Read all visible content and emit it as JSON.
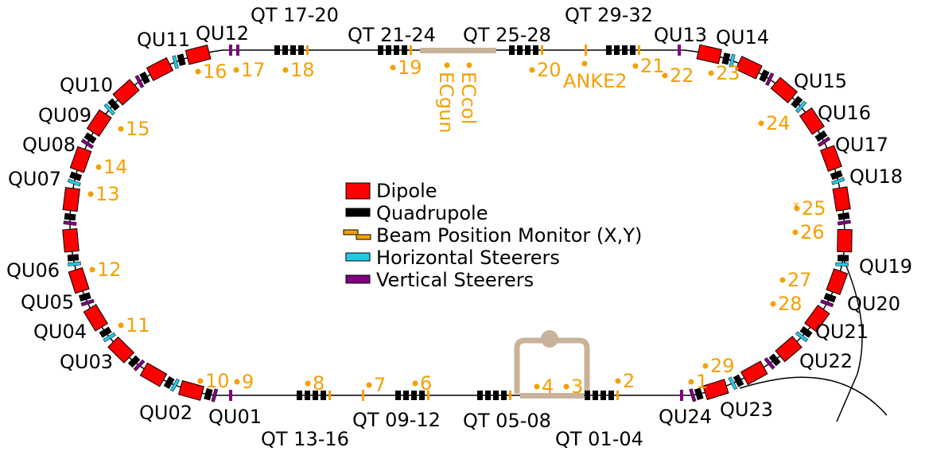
{
  "magnets": [
    "QT 17-20",
    "QU11",
    "QU12",
    "QT 21-24",
    "QT 25-28",
    "QT 29-32",
    "QU13",
    "QU14",
    "QU10",
    "QU15",
    "QU09",
    "QU16",
    "QU08",
    "QU17",
    "QU07",
    "QU18",
    "QU06",
    "QU19",
    "QU05",
    "QU20",
    "QU04",
    "QU21",
    "QU03",
    "QU22",
    "QU02",
    "QU01",
    "QU23",
    "QU24",
    "QT 13-16",
    "QT 09-12",
    "QT 05-08",
    "QT 01-04"
  ],
  "bpms": [
    "16",
    "17",
    "18",
    "19",
    "20",
    "21",
    "22",
    "23",
    "15",
    "24",
    "14",
    "13",
    "25",
    "26",
    "12",
    "27",
    "11",
    "28",
    "29",
    "10",
    "9",
    "8",
    "7",
    "6",
    "4",
    "3",
    "2",
    "1"
  ],
  "devices": {
    "anke": "ANKE2",
    "ecgun": "ECgun",
    "eccol": "ECcol",
    "marker": "x"
  },
  "legend": [
    "Dipole",
    "Quadrupole",
    "Beam Position Monitor (X,Y)",
    "Horizontal Steerers",
    "Vertical Steerers"
  ]
}
